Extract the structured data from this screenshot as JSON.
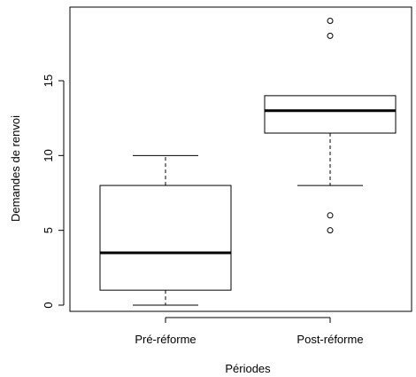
{
  "chart_data": {
    "type": "boxplot",
    "title": "",
    "xlabel": "Périodes",
    "ylabel": "Demandes de renvoi",
    "ylim": [
      0,
      19
    ],
    "yticks": [
      0,
      5,
      10,
      15
    ],
    "grid": false,
    "categories": [
      "Pré-réforme",
      "Post-réforme"
    ],
    "boxes": [
      {
        "category": "Pré-réforme",
        "whisker_low": 0,
        "q1": 1,
        "median": 3.5,
        "q3": 8,
        "whisker_high": 10,
        "outliers": []
      },
      {
        "category": "Post-réforme",
        "whisker_low": 8,
        "q1": 11.5,
        "median": 13,
        "q3": 14,
        "whisker_high": 14,
        "outliers": [
          5,
          6,
          18,
          19
        ]
      }
    ]
  }
}
